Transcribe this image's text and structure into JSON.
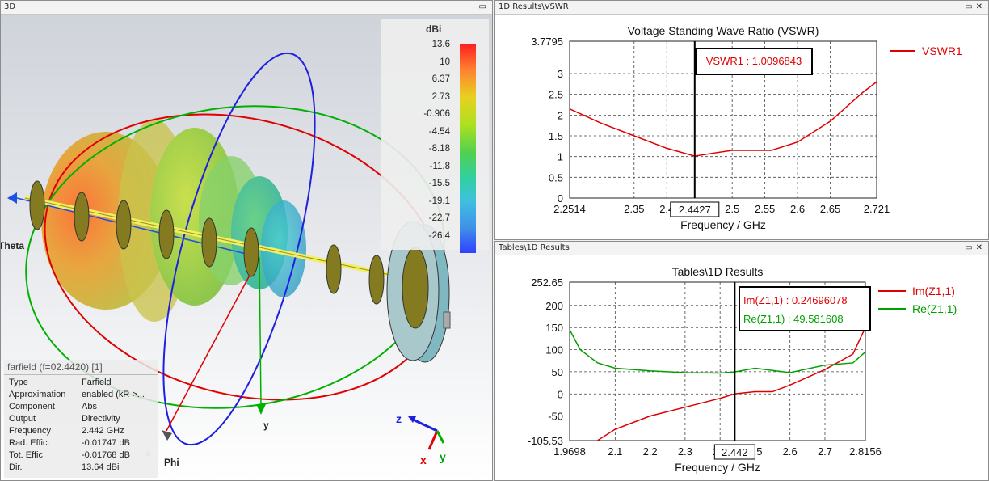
{
  "view3d": {
    "title": "3D",
    "legend": {
      "unit": "dBi",
      "ticks": [
        "13.6",
        "10",
        "6.37",
        "2.73",
        "-0.906",
        "-4.54",
        "-8.18",
        "-11.8",
        "-15.5",
        "-19.1",
        "-22.7",
        "-26.4"
      ]
    },
    "axis_labels": {
      "theta": "Theta",
      "phi": "Phi",
      "x": "x",
      "y": "y",
      "z": "z",
      "y2": "y",
      "x2": "x"
    },
    "info": {
      "header": "farfield (f=02.4420) [1]",
      "rows": [
        {
          "k": "Type",
          "v": "Farfield"
        },
        {
          "k": "Approximation",
          "v": "enabled (kR >..."
        },
        {
          "k": "Component",
          "v": "Abs"
        },
        {
          "k": "Output",
          "v": "Directivity"
        },
        {
          "k": "Frequency",
          "v": "2.442 GHz"
        },
        {
          "k": "Rad. Effic.",
          "v": "-0.01747 dB"
        },
        {
          "k": "Tot. Effic.",
          "v": "-0.01768 dB"
        },
        {
          "k": "Dir.",
          "v": "13.64 dBi"
        }
      ]
    }
  },
  "vswr_panel": {
    "title": "1D Results\\VSWR",
    "chart_title": "Voltage Standing Wave Ratio (VSWR)",
    "xlabel": "Frequency / GHz",
    "legend": "VSWR1",
    "marker_label": "VSWR1 : 1.0096843",
    "marker_x": "2.4427",
    "xticks": [
      "2.2514",
      "2.35",
      "2.4",
      "2.5",
      "2.55",
      "2.6",
      "2.65",
      "2.721"
    ],
    "yticks": [
      "3.7795",
      "3",
      "2.5",
      "2",
      "1.5",
      "1",
      "0.5",
      "0"
    ],
    "color": "#e00000"
  },
  "tables_panel": {
    "title": "Tables\\1D Results",
    "chart_title": "Tables\\1D Results",
    "xlabel": "Frequency / GHz",
    "legend": [
      "Im(Z1,1)",
      "Re(Z1,1)"
    ],
    "marker_im": "Im(Z1,1) : 0.24696078",
    "marker_re": "Re(Z1,1) : 49.581608",
    "marker_x": "2.442",
    "xticks": [
      "1.9698",
      "2.1",
      "2.2",
      "2.3",
      "2.4",
      "2.5",
      "2.6",
      "2.7",
      "2.8156"
    ],
    "yticks": [
      "252.65",
      "200",
      "150",
      "100",
      "50",
      "0",
      "-50",
      "-105.53"
    ],
    "colors": {
      "im": "#e00000",
      "re": "#00a000"
    }
  },
  "chart_data": [
    {
      "type": "line",
      "title": "Voltage Standing Wave Ratio (VSWR)",
      "xlabel": "Frequency / GHz",
      "ylabel": "",
      "xlim": [
        2.2514,
        2.721
      ],
      "ylim": [
        0,
        3.7795
      ],
      "series": [
        {
          "name": "VSWR1",
          "x": [
            2.2514,
            2.3,
            2.35,
            2.4,
            2.4427,
            2.47,
            2.5,
            2.53,
            2.56,
            2.6,
            2.65,
            2.7,
            2.721
          ],
          "y": [
            2.15,
            1.8,
            1.5,
            1.2,
            1.01,
            1.08,
            1.15,
            1.15,
            1.15,
            1.35,
            1.85,
            2.55,
            2.8
          ]
        }
      ]
    },
    {
      "type": "line",
      "title": "Tables\\1D Results",
      "xlabel": "Frequency / GHz",
      "ylabel": "",
      "xlim": [
        1.9698,
        2.8156
      ],
      "ylim": [
        -105.53,
        252.65
      ],
      "series": [
        {
          "name": "Im(Z1,1)",
          "x": [
            2.05,
            2.1,
            2.2,
            2.3,
            2.4,
            2.442,
            2.5,
            2.55,
            2.6,
            2.7,
            2.78,
            2.8156
          ],
          "y": [
            -105,
            -80,
            -50,
            -30,
            -10,
            0.25,
            5,
            5,
            20,
            55,
            90,
            150
          ]
        },
        {
          "name": "Re(Z1,1)",
          "x": [
            1.9698,
            2.0,
            2.05,
            2.1,
            2.2,
            2.3,
            2.4,
            2.442,
            2.5,
            2.6,
            2.7,
            2.78,
            2.8156
          ],
          "y": [
            145,
            100,
            70,
            58,
            52,
            48,
            47,
            49.6,
            58,
            48,
            65,
            70,
            95
          ]
        }
      ]
    }
  ]
}
